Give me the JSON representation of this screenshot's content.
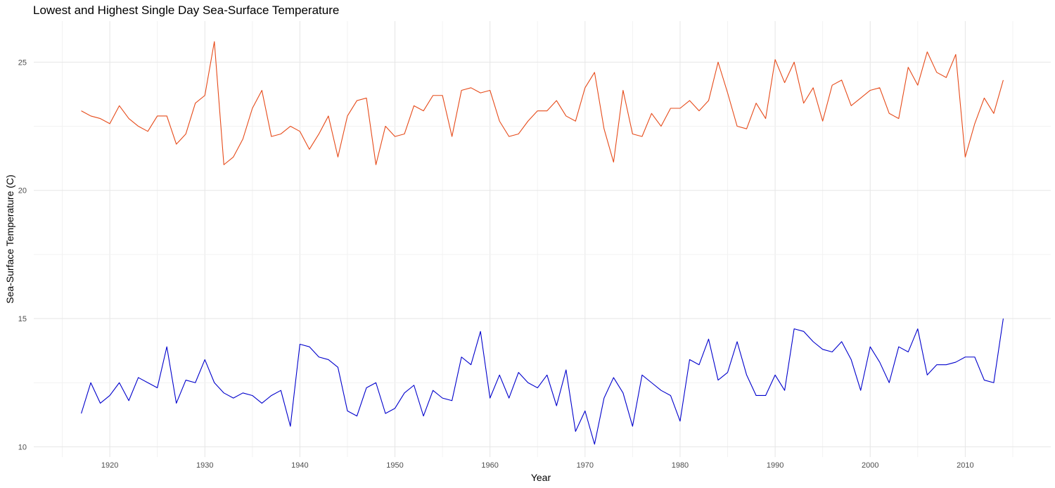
{
  "chart_data": {
    "type": "line",
    "title": "Lowest and Highest Single Day Sea-Surface Temperature",
    "xlabel": "Year",
    "ylabel": "Sea-Surface Temperature (C)",
    "xlim": [
      1912,
      2019
    ],
    "ylim": [
      9.6,
      26.6
    ],
    "x_ticks": [
      1920,
      1930,
      1940,
      1950,
      1960,
      1970,
      1980,
      1990,
      2000,
      2010
    ],
    "y_ticks": [
      10,
      15,
      20,
      25
    ],
    "grid": true,
    "legend": "none",
    "x": [
      1917,
      1918,
      1919,
      1920,
      1921,
      1922,
      1923,
      1924,
      1925,
      1926,
      1927,
      1928,
      1929,
      1930,
      1931,
      1932,
      1933,
      1934,
      1935,
      1936,
      1937,
      1938,
      1939,
      1940,
      1941,
      1942,
      1943,
      1944,
      1945,
      1946,
      1947,
      1948,
      1949,
      1950,
      1951,
      1952,
      1953,
      1954,
      1955,
      1956,
      1957,
      1958,
      1959,
      1960,
      1961,
      1962,
      1963,
      1964,
      1965,
      1966,
      1967,
      1968,
      1969,
      1970,
      1971,
      1972,
      1973,
      1974,
      1975,
      1976,
      1977,
      1978,
      1979,
      1980,
      1981,
      1982,
      1983,
      1984,
      1985,
      1986,
      1987,
      1988,
      1989,
      1990,
      1991,
      1992,
      1993,
      1994,
      1995,
      1996,
      1997,
      1998,
      1999,
      2000,
      2001,
      2002,
      2003,
      2004,
      2005,
      2006,
      2007,
      2008,
      2009,
      2010,
      2011,
      2012,
      2013,
      2014
    ],
    "series": [
      {
        "color": "#e64a19",
        "values": [
          23.1,
          22.9,
          22.8,
          22.6,
          23.3,
          22.8,
          22.5,
          22.3,
          22.9,
          22.9,
          21.8,
          22.2,
          23.4,
          23.7,
          25.8,
          21.0,
          21.3,
          22.0,
          23.2,
          23.9,
          22.1,
          22.2,
          22.5,
          22.3,
          21.6,
          22.2,
          22.9,
          21.3,
          22.9,
          23.5,
          23.6,
          21.0,
          22.5,
          22.1,
          22.2,
          23.3,
          23.1,
          23.7,
          23.7,
          22.1,
          23.9,
          24.0,
          23.8,
          23.9,
          22.7,
          22.1,
          22.2,
          22.7,
          23.1,
          23.1,
          23.5,
          22.9,
          22.7,
          24.0,
          24.6,
          22.4,
          21.1,
          23.9,
          22.2,
          22.1,
          23.0,
          22.5,
          23.2,
          23.2,
          23.5,
          23.1,
          23.5,
          25.0,
          23.8,
          22.5,
          22.4,
          23.4,
          22.8,
          25.1,
          24.2,
          25.0,
          23.4,
          24.0,
          22.7,
          24.1,
          24.3,
          23.3,
          23.6,
          23.9,
          24.0,
          23.0,
          22.8,
          24.8,
          24.1,
          25.4,
          24.6,
          24.4,
          25.3,
          21.3,
          22.6,
          23.6,
          23.0,
          24.3
        ]
      },
      {
        "color": "#0000cc",
        "values": [
          11.3,
          12.5,
          11.7,
          12.0,
          12.5,
          11.8,
          12.7,
          12.5,
          12.3,
          13.9,
          11.7,
          12.6,
          12.5,
          13.4,
          12.5,
          12.1,
          11.9,
          12.1,
          12.0,
          11.7,
          12.0,
          12.2,
          10.8,
          14.0,
          13.9,
          13.5,
          13.4,
          13.1,
          11.4,
          11.2,
          12.3,
          12.5,
          11.3,
          11.5,
          12.1,
          12.4,
          11.2,
          12.2,
          11.9,
          11.8,
          13.5,
          13.2,
          14.5,
          11.9,
          12.8,
          11.9,
          12.9,
          12.5,
          12.3,
          12.8,
          11.6,
          13.0,
          10.6,
          11.4,
          10.1,
          11.9,
          12.7,
          12.1,
          10.8,
          12.8,
          12.5,
          12.2,
          12.0,
          11.0,
          13.4,
          13.2,
          14.2,
          12.6,
          12.9,
          14.1,
          12.8,
          12.0,
          12.0,
          12.8,
          12.2,
          14.6,
          14.5,
          14.1,
          13.8,
          13.7,
          14.1,
          13.4,
          12.2,
          13.9,
          13.3,
          12.5,
          13.9,
          13.7,
          14.6,
          12.8,
          13.2,
          13.2,
          13.3,
          13.5,
          13.5,
          12.6,
          12.5,
          15.0
        ]
      }
    ]
  }
}
